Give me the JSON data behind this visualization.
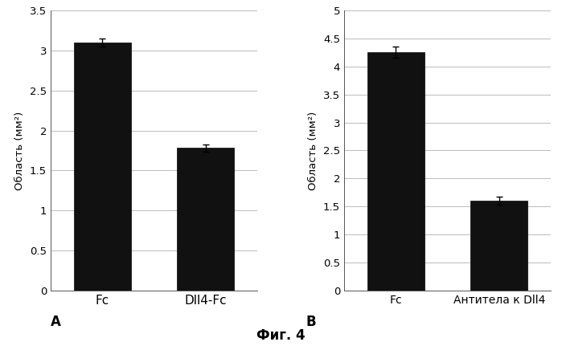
{
  "left_chart": {
    "categories": [
      "Fc",
      "Dll4-Fc"
    ],
    "values": [
      3.1,
      1.78
    ],
    "errors": [
      0.05,
      0.05
    ],
    "ylim": [
      0,
      3.5
    ],
    "yticks": [
      0,
      0.5,
      1.0,
      1.5,
      2.0,
      2.5,
      3.0,
      3.5
    ],
    "ylabel": "Область (мм²)",
    "label": "A"
  },
  "right_chart": {
    "categories": [
      "Fc",
      "Антитела к Dll4"
    ],
    "values": [
      4.25,
      1.6
    ],
    "errors": [
      0.1,
      0.07
    ],
    "ylim": [
      0,
      5.0
    ],
    "yticks": [
      0,
      0.5,
      1.0,
      1.5,
      2.0,
      2.5,
      3.0,
      3.5,
      4.0,
      4.5,
      5.0
    ],
    "ylabel": "Область (мм²)",
    "label": "B"
  },
  "bar_color": "#111111",
  "bar_edgecolor": "#000000",
  "background_color": "#ffffff",
  "figure_label": "Фиг. 4",
  "font_size_ticks": 9.5,
  "font_size_ylabel": 9.5,
  "font_size_xlabel": 11,
  "font_size_label": 12,
  "font_size_fig_label": 12
}
